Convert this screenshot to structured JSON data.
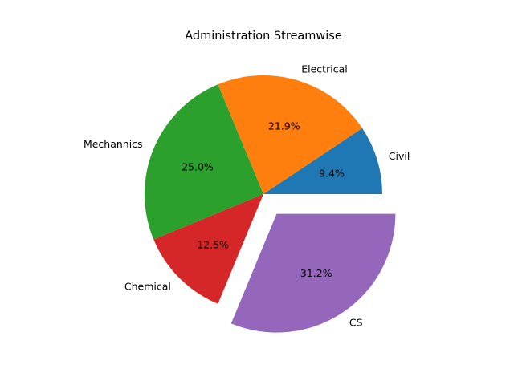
{
  "chart_data": {
    "type": "pie",
    "title": "Administration Streamwise",
    "categories": [
      "Civil",
      "Electrical",
      "Mechannics",
      "Chemical",
      "CS"
    ],
    "values": [
      3,
      7,
      8,
      4,
      10
    ],
    "percent_labels": [
      "9.4%",
      "21.9%",
      "25.0%",
      "12.5%",
      "31.2%"
    ],
    "colors": [
      "#1f77b4",
      "#ff7f0e",
      "#2ca02c",
      "#d62728",
      "#9467bd"
    ],
    "exploded": [
      "CS"
    ],
    "start_angle_deg": 0,
    "direction": "counterclockwise",
    "legend": "none"
  }
}
